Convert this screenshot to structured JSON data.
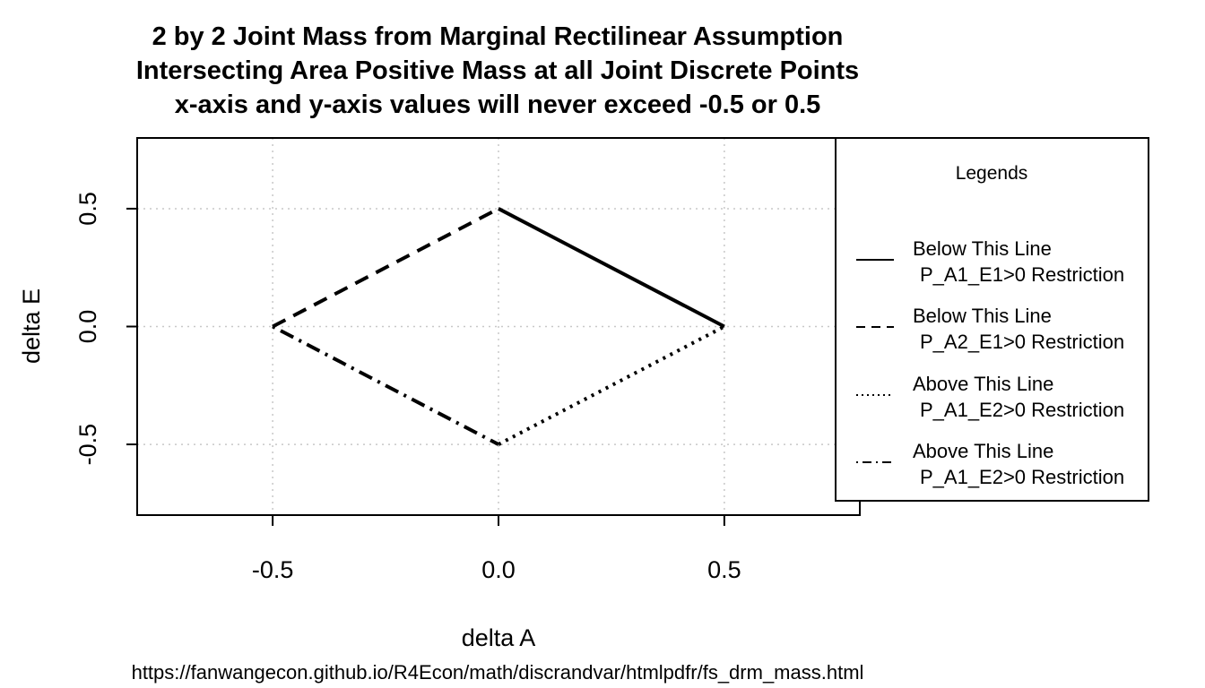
{
  "chart_data": {
    "type": "line",
    "title_lines": [
      "2 by 2 Joint Mass from Marginal Rectilinear Assumption",
      "Intersecting Area Positive Mass at all Joint Discrete Points",
      "x-axis and y-axis values will never exceed -0.5 or 0.5"
    ],
    "xlabel": "delta A",
    "ylabel": "delta E",
    "xlim": [
      -0.8,
      0.8
    ],
    "ylim": [
      -0.8,
      0.8
    ],
    "x_ticks": [
      -0.5,
      0.0,
      0.5
    ],
    "y_ticks": [
      -0.5,
      0.0,
      0.5
    ],
    "x_tick_labels": [
      "-0.5",
      "0.0",
      "0.5"
    ],
    "y_tick_labels": [
      "-0.5",
      "0.0",
      "0.5"
    ],
    "grid": true,
    "grid_style": "dotted",
    "legend_position": "right",
    "legend_title": "Legends",
    "series": [
      {
        "line1": "Below This Line",
        "line2": "P_A1_E1>0 Restriction",
        "linestyle": "solid",
        "x": [
          0.0,
          0.5
        ],
        "y": [
          0.5,
          0.0
        ]
      },
      {
        "line1": "Below This Line",
        "line2": "P_A2_E1>0 Restriction",
        "linestyle": "dashed",
        "x": [
          -0.5,
          0.0
        ],
        "y": [
          0.0,
          0.5
        ]
      },
      {
        "line1": "Above This Line",
        "line2": "P_A1_E2>0 Restriction",
        "linestyle": "dotted",
        "x": [
          0.0,
          0.5
        ],
        "y": [
          -0.5,
          0.0
        ]
      },
      {
        "line1": "Above This Line",
        "line2": "P_A1_E2>0 Restriction",
        "linestyle": "dotdash",
        "x": [
          -0.5,
          0.0
        ],
        "y": [
          0.0,
          -0.5
        ]
      }
    ]
  },
  "source_url": "https://fanwangecon.github.io/R4Econ/math/discrandvar/htmlpdfr/fs_drm_mass.html",
  "colors": {
    "line": "#000000",
    "grid": "#c8c8c8",
    "background": "#ffffff"
  }
}
